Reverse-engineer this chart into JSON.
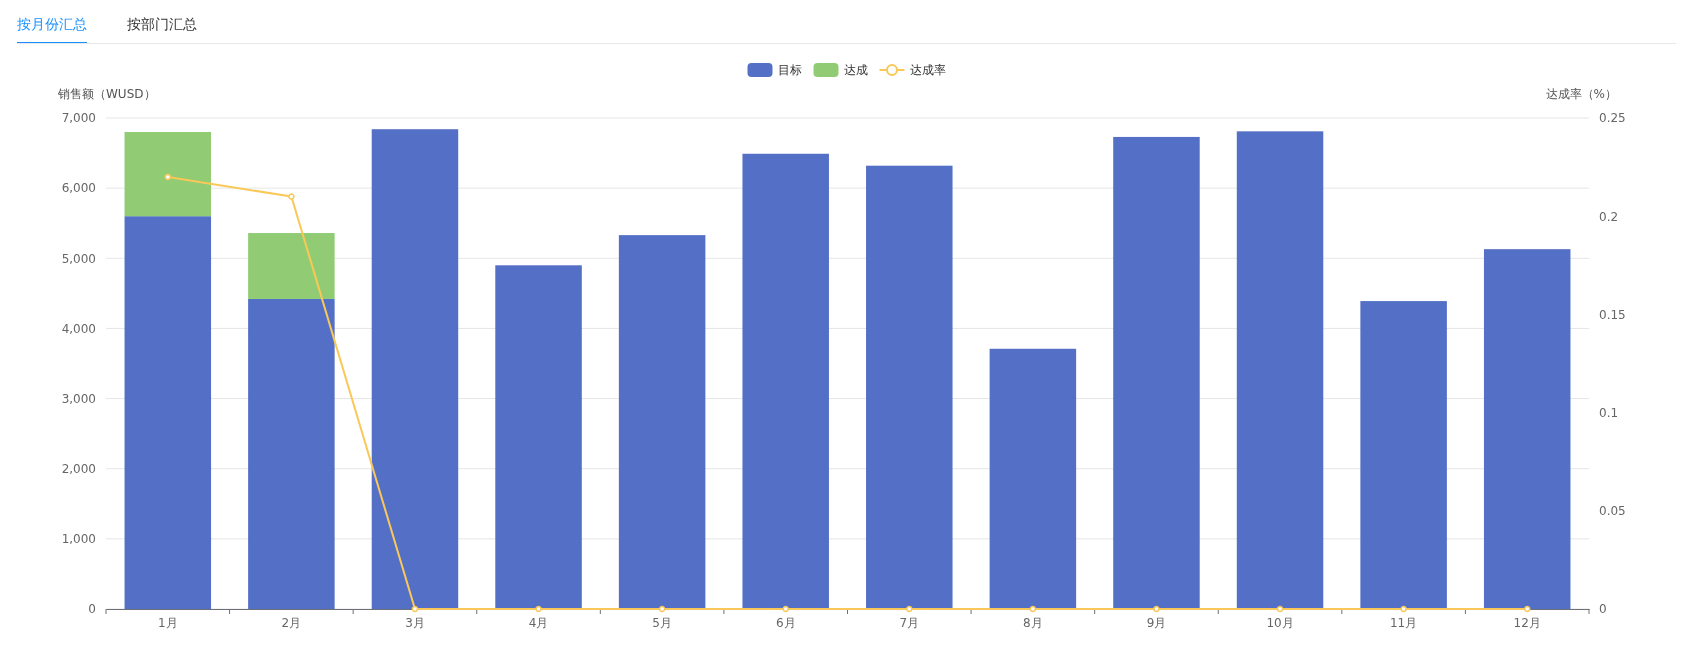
{
  "chart_data": {
    "type": "bar",
    "stacked": true,
    "annotations": [
      "按月份汇总",
      "按部门汇总"
    ],
    "ylabel": "销售额（WUSD）",
    "y2label": "达成率（%）",
    "categories": [
      "1月",
      "2月",
      "3月",
      "4月",
      "5月",
      "6月",
      "7月",
      "8月",
      "9月",
      "10月",
      "11月",
      "12月"
    ],
    "series": [
      {
        "name": "目标",
        "color": "#5470c6",
        "values": [
          5600,
          4420,
          6840,
          4900,
          5330,
          6490,
          6320,
          3710,
          6730,
          6810,
          4390,
          5130
        ]
      },
      {
        "name": "达成",
        "color": "#91cc75",
        "values": [
          1200,
          940,
          null,
          null,
          null,
          null,
          null,
          null,
          null,
          null,
          null,
          null
        ]
      },
      {
        "name": "达成率",
        "type": "line",
        "axis": "y2",
        "color": "#fac858",
        "values": [
          0.22,
          0.21,
          0,
          0,
          0,
          0,
          0,
          0,
          0,
          0,
          0,
          0
        ]
      }
    ],
    "ylim": [
      0,
      7000
    ],
    "yticks": [
      0,
      {
        "value": 1000,
        "label": "1,000"
      },
      {
        "value": 2000,
        "label": "2,000"
      },
      {
        "value": 3000,
        "label": "3,000"
      },
      {
        "value": 4000,
        "label": "4,000"
      },
      {
        "value": 5000,
        "label": "5,000"
      },
      {
        "value": 6000,
        "label": "6,000"
      },
      {
        "value": 7000,
        "label": "7,000"
      }
    ],
    "y2lim": [
      0,
      0.25
    ],
    "y2ticks": [
      0,
      0.05,
      0.1,
      0.15,
      0.2,
      0.25
    ],
    "grid": "y",
    "legend": "top",
    "marker": "circle"
  }
}
